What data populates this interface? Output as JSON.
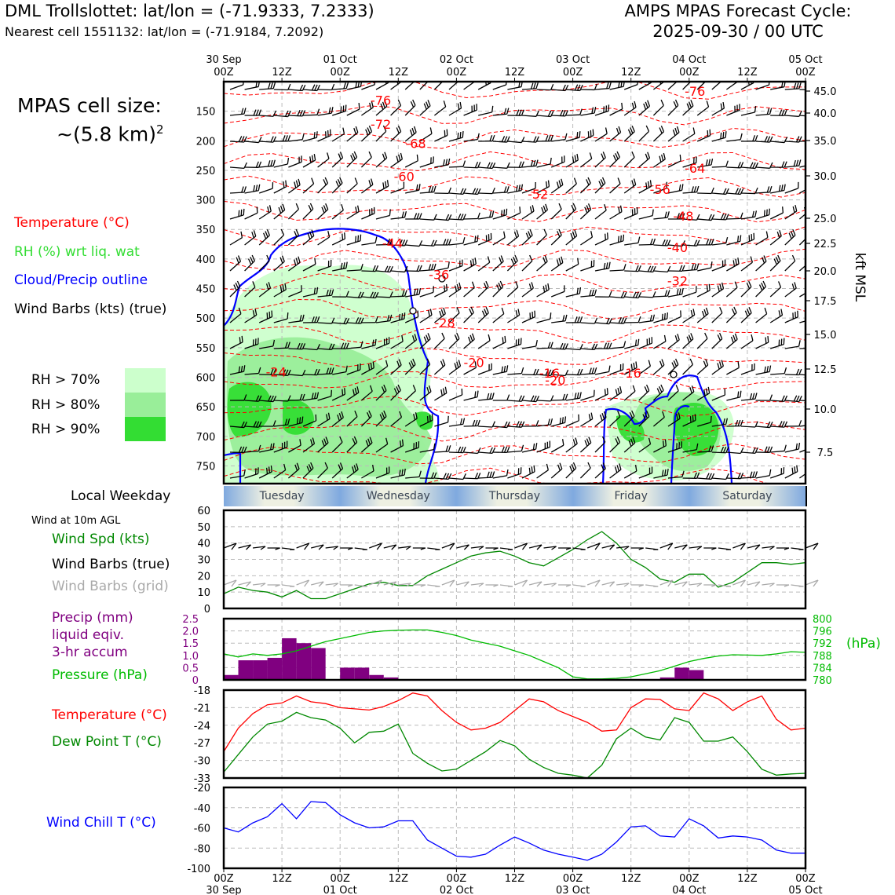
{
  "header": {
    "site": "DML Trollslottet: lat/lon = (-71.9333, 7.2333)",
    "nearest": "Nearest cell 1551132: lat/lon = (-71.9184, 7.2092)",
    "cycle_line1": "AMPS MPAS Forecast Cycle:",
    "cycle_line2": "2025-09-30 / 00 UTC"
  },
  "cell_size": {
    "line1": "MPAS cell size:",
    "line2": "~(5.8 km)",
    "sup": "2"
  },
  "legend_top": {
    "temperature": "Temperature (°C)",
    "rh": "RH (%) wrt liq. wat",
    "cloud": "Cloud/Precip outline",
    "wind": "Wind Barbs (kts) (true)",
    "rh70": "RH > 70%",
    "rh80": "RH > 80%",
    "rh90": "RH > 90%"
  },
  "colors": {
    "temperature": "#ff0000",
    "rh_label": "#33dd33",
    "cloud": "#0000ff",
    "rh70": "#ccffcc",
    "rh80": "#99ee99",
    "rh90": "#33dd33",
    "wind_speed": "#008800",
    "grid_barbs": "#aaaaaa",
    "precip": "#800080",
    "pressure": "#00bb00",
    "dew": "#008800",
    "wind_chill": "#0000ff"
  },
  "time_axis": {
    "top": [
      {
        "day": "30 Sep",
        "hr": "00Z"
      },
      {
        "day": "",
        "hr": "12Z"
      },
      {
        "day": "01 Oct",
        "hr": "00Z"
      },
      {
        "day": "",
        "hr": "12Z"
      },
      {
        "day": "02 Oct",
        "hr": "00Z"
      },
      {
        "day": "",
        "hr": "12Z"
      },
      {
        "day": "03 Oct",
        "hr": "00Z"
      },
      {
        "day": "",
        "hr": "12Z"
      },
      {
        "day": "04 Oct",
        "hr": "00Z"
      },
      {
        "day": "",
        "hr": "12Z"
      },
      {
        "day": "05 Oct",
        "hr": "00Z"
      }
    ]
  },
  "weekday": {
    "label": "Local Weekday",
    "days": [
      "Tuesday",
      "Wednesday",
      "Thursday",
      "Friday",
      "Saturday"
    ]
  },
  "panel_labels": {
    "wind10m_title": "Wind at 10m AGL",
    "wind_spd": "Wind Spd (kts)",
    "wind_barbs_true": "Wind Barbs (true)",
    "wind_barbs_grid": "Wind Barbs (grid)",
    "precip1": "Precip (mm)",
    "precip2": "liquid eqiv.",
    "precip3": "3-hr accum",
    "pressure": "Pressure (hPa)",
    "pressure_unit": "(hPa)",
    "temp": "Temperature (°C)",
    "dew": "Dew Point T (°C)",
    "chill": "Wind Chill T (°C)"
  },
  "chart_data": [
    {
      "type": "time-height",
      "y_label_right": "kft MSL",
      "pressure_ticks": [
        "150",
        "200",
        "250",
        "300",
        "350",
        "400",
        "450",
        "500",
        "550",
        "600",
        "650",
        "700",
        "750"
      ],
      "kft_ticks": [
        "45.0",
        "40.0",
        "35.0",
        "30.0",
        "25.0",
        "22.5",
        "20.0",
        "17.5",
        "15.0",
        "12.5",
        "10.0",
        "7.5"
      ],
      "temperature_contour_labels": [
        {
          "text": "-76",
          "t": 27,
          "p": 131
        },
        {
          "text": "-72",
          "t": 27,
          "p": 172
        },
        {
          "text": "-68",
          "t": 33,
          "p": 204
        },
        {
          "text": "-60",
          "t": 31,
          "p": 260
        },
        {
          "text": "-52",
          "t": 54,
          "p": 290
        },
        {
          "text": "-64",
          "t": 81,
          "p": 246
        },
        {
          "text": "-56",
          "t": 75,
          "p": 282
        },
        {
          "text": "-48",
          "t": 79,
          "p": 327
        },
        {
          "text": "-40",
          "t": 78,
          "p": 380
        },
        {
          "text": "-44",
          "t": 29,
          "p": 373
        },
        {
          "text": "-36",
          "t": 37,
          "p": 426
        },
        {
          "text": "-32",
          "t": 78,
          "p": 437
        },
        {
          "text": "-28",
          "t": 38,
          "p": 508
        },
        {
          "text": "-20",
          "t": 43,
          "p": 575
        },
        {
          "text": "-16",
          "t": 56,
          "p": 593
        },
        {
          "text": "-20",
          "t": 57,
          "p": 605
        },
        {
          "text": "-16",
          "t": 70,
          "p": 593
        },
        {
          "text": "-76",
          "t": 81,
          "p": 116
        },
        {
          "text": "-24",
          "t": 9,
          "p": 591
        }
      ]
    },
    {
      "type": "line",
      "title": "Wind Spd (kts)",
      "ylim": [
        0,
        60
      ],
      "yticks": [
        "0",
        "10",
        "20",
        "30",
        "40",
        "50",
        "60"
      ],
      "x_hours": [
        0,
        3,
        6,
        9,
        12,
        15,
        18,
        21,
        24,
        27,
        30,
        33,
        36,
        39,
        42,
        45,
        48,
        51,
        54,
        57,
        60,
        63,
        66,
        69,
        72,
        75,
        78,
        81,
        84,
        87,
        90,
        93,
        96,
        99,
        102,
        105,
        108,
        111,
        114,
        117,
        120
      ],
      "values": [
        9,
        13,
        11,
        10,
        7,
        11,
        6,
        6,
        9,
        12,
        15,
        16,
        14,
        14,
        20,
        24,
        28,
        32,
        34,
        35,
        32,
        28,
        26,
        31,
        36,
        42,
        47,
        40,
        30,
        25,
        18,
        16,
        21,
        21,
        13,
        16,
        22,
        28,
        28,
        27,
        28
      ]
    },
    {
      "type": "bar+line",
      "title": "Precip (mm) / Pressure (hPa)",
      "precip_ylim": [
        0,
        2.5
      ],
      "precip_ticks": [
        "0",
        "0.5",
        "1.0",
        "1.5",
        "2.0",
        "2.5"
      ],
      "pressure_ylim": [
        780,
        800
      ],
      "pressure_ticks": [
        "780",
        "784",
        "788",
        "792",
        "796",
        "800"
      ],
      "precip_x_hours": [
        3,
        6,
        9,
        12,
        15,
        18,
        21,
        24,
        27,
        30,
        33,
        36,
        39,
        42,
        45,
        48,
        51,
        54,
        57,
        60,
        63,
        66,
        69,
        72,
        75,
        78,
        81,
        84,
        87,
        90,
        93,
        96,
        99,
        102,
        105,
        108,
        111,
        114,
        117,
        120
      ],
      "precip_values": [
        0.2,
        0.8,
        0.8,
        0.9,
        1.7,
        1.5,
        1.3,
        0,
        0.5,
        0.5,
        0.2,
        0.1,
        0,
        0,
        0,
        0,
        0,
        0,
        0,
        0,
        0,
        0,
        0,
        0,
        0,
        0,
        0,
        0,
        0,
        0,
        0.1,
        0.5,
        0.4,
        0,
        0,
        0,
        0,
        0,
        0,
        0
      ],
      "pressure_x_hours": [
        0,
        3,
        6,
        9,
        12,
        15,
        18,
        21,
        24,
        27,
        30,
        33,
        36,
        39,
        42,
        45,
        48,
        51,
        54,
        57,
        60,
        63,
        66,
        69,
        72,
        75,
        78,
        81,
        84,
        87,
        90,
        93,
        96,
        99,
        102,
        105,
        108,
        111,
        114,
        117,
        120
      ],
      "pressure_values": [
        788.5,
        787.5,
        788.5,
        788,
        788.5,
        789.5,
        791,
        792.5,
        793.5,
        794.5,
        795.5,
        796,
        796.2,
        796.3,
        796.3,
        795.5,
        794.5,
        793,
        792,
        791,
        789.5,
        788,
        786,
        784,
        781,
        780.3,
        780.3,
        780.5,
        781,
        782,
        783,
        784.5,
        786,
        787,
        787.8,
        788.2,
        788.1,
        788,
        788.5,
        789.2,
        789
      ]
    },
    {
      "type": "line",
      "title": "Temperature / Dew Point (°C)",
      "ylim": [
        -33,
        -18
      ],
      "yticks": [
        "-18",
        "-21",
        "-24",
        "-27",
        "-30",
        "-33"
      ],
      "x_hours": [
        0,
        3,
        6,
        9,
        12,
        15,
        18,
        21,
        24,
        27,
        30,
        33,
        36,
        39,
        42,
        45,
        48,
        51,
        54,
        57,
        60,
        63,
        66,
        69,
        72,
        75,
        78,
        81,
        84,
        87,
        90,
        93,
        96,
        99,
        102,
        105,
        108,
        111,
        114,
        117,
        120
      ],
      "series": [
        {
          "name": "Temperature",
          "values": [
            -28.5,
            -24.5,
            -22,
            -20.5,
            -20.2,
            -19,
            -20,
            -20.3,
            -21,
            -21.2,
            -21.4,
            -20.8,
            -19.8,
            -18.5,
            -19,
            -21.5,
            -23.5,
            -24.8,
            -24.5,
            -23.5,
            -21.5,
            -19.5,
            -20,
            -21.5,
            -22.5,
            -23.5,
            -25,
            -24.8,
            -21,
            -19.5,
            -19.6,
            -21.2,
            -21.5,
            -18.5,
            -19.5,
            -21.5,
            -20,
            -19,
            -23,
            -24.8,
            -24.5
          ]
        },
        {
          "name": "Dew Point",
          "values": [
            -32,
            -29,
            -26,
            -23.8,
            -23.3,
            -21.8,
            -22.7,
            -23.1,
            -24.5,
            -27,
            -25.2,
            -25,
            -23.8,
            -28.8,
            -30.5,
            -31.8,
            -31.5,
            -30,
            -28.5,
            -26.6,
            -27.5,
            -29.8,
            -31.2,
            -32.2,
            -32.5,
            -33,
            -30.8,
            -26.3,
            -24.5,
            -26,
            -26.5,
            -22.7,
            -23.5,
            -26.7,
            -26.7,
            -26,
            -28.5,
            -31.5,
            -32.5,
            -32.3,
            -32.2
          ]
        }
      ]
    },
    {
      "type": "line",
      "title": "Wind Chill T (°C)",
      "ylim": [
        -100,
        -20
      ],
      "yticks": [
        "-20",
        "-40",
        "-60",
        "-80",
        "-100"
      ],
      "x_hours": [
        0,
        3,
        6,
        9,
        12,
        15,
        18,
        21,
        24,
        27,
        30,
        33,
        36,
        39,
        42,
        45,
        48,
        51,
        54,
        57,
        60,
        63,
        66,
        69,
        72,
        75,
        78,
        81,
        84,
        87,
        90,
        93,
        96,
        99,
        102,
        105,
        108,
        111,
        114,
        117,
        120
      ],
      "values": [
        -60,
        -64,
        -55,
        -49,
        -36,
        -51,
        -34,
        -35,
        -47,
        -55,
        -60,
        -59,
        -53,
        -53,
        -72,
        -80,
        -88,
        -89,
        -86,
        -77,
        -69,
        -75,
        -82,
        -86,
        -89,
        -92,
        -86,
        -74,
        -59,
        -58,
        -68,
        -69,
        -51,
        -58,
        -70,
        -68,
        -69,
        -72,
        -82,
        -85,
        -85
      ]
    }
  ],
  "bottom_axis": [
    {
      "hr": "00Z",
      "day": "30 Sep"
    },
    {
      "hr": "12Z",
      "day": ""
    },
    {
      "hr": "00Z",
      "day": "01 Oct"
    },
    {
      "hr": "12Z",
      "day": ""
    },
    {
      "hr": "00Z",
      "day": "02 Oct"
    },
    {
      "hr": "12Z",
      "day": ""
    },
    {
      "hr": "00Z",
      "day": "03 Oct"
    },
    {
      "hr": "12Z",
      "day": ""
    },
    {
      "hr": "00Z",
      "day": "04 Oct"
    },
    {
      "hr": "12Z",
      "day": ""
    },
    {
      "hr": "00Z",
      "day": "05 Oct"
    }
  ]
}
